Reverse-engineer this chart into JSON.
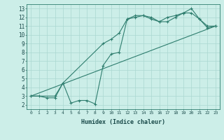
{
  "title": "",
  "xlabel": "Humidex (Indice chaleur)",
  "xlim": [
    -0.5,
    23.5
  ],
  "ylim": [
    1.5,
    13.5
  ],
  "xticks": [
    0,
    1,
    2,
    3,
    4,
    5,
    6,
    7,
    8,
    9,
    10,
    11,
    12,
    13,
    14,
    15,
    16,
    17,
    18,
    19,
    20,
    21,
    22,
    23
  ],
  "yticks": [
    2,
    3,
    4,
    5,
    6,
    7,
    8,
    9,
    10,
    11,
    12,
    13
  ],
  "line_color": "#2e7d6e",
  "bg_color": "#cceee8",
  "grid_color": "#aad8d0",
  "line1_x": [
    0,
    1,
    2,
    3,
    4,
    5,
    6,
    7,
    8,
    9,
    10,
    11,
    12,
    13,
    14,
    15,
    16,
    17,
    18,
    19,
    20,
    21,
    22,
    23
  ],
  "line1_y": [
    3.0,
    3.0,
    2.8,
    2.8,
    4.5,
    2.2,
    2.5,
    2.5,
    2.1,
    6.5,
    7.8,
    8.0,
    11.8,
    12.0,
    12.2,
    12.0,
    11.5,
    11.5,
    12.0,
    12.5,
    13.0,
    11.8,
    10.8,
    11.0
  ],
  "line2_x": [
    0,
    3,
    4,
    9,
    10,
    11,
    12,
    13,
    14,
    15,
    16,
    17,
    18,
    19,
    20,
    21,
    22,
    23
  ],
  "line2_y": [
    3.0,
    3.0,
    4.5,
    9.0,
    9.5,
    10.2,
    11.8,
    12.2,
    12.2,
    11.8,
    11.5,
    12.0,
    12.2,
    12.5,
    12.5,
    11.8,
    11.0,
    11.0
  ],
  "line3_x": [
    0,
    23
  ],
  "line3_y": [
    3.0,
    11.0
  ]
}
